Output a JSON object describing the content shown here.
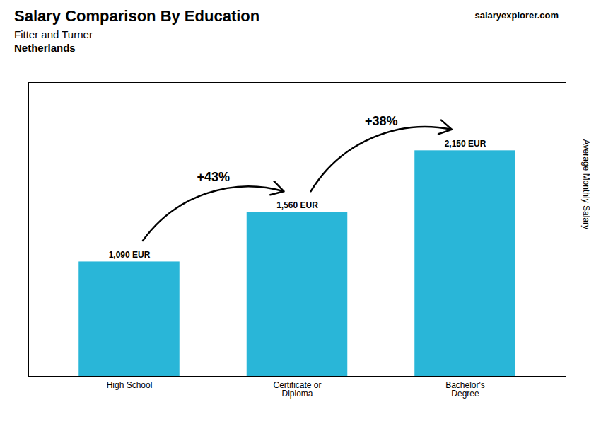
{
  "chart_data": {
    "type": "bar",
    "title": "Salary Comparison By Education",
    "subtitle": [
      "Fitter and Turner",
      "Netherlands"
    ],
    "caption": "salaryexplorer.com",
    "ylabel": "Average Monthly Salary",
    "categories": [
      "High School",
      "Certificate or\nDiploma",
      "Bachelor's\nDegree"
    ],
    "values": [
      1090,
      1560,
      2150
    ],
    "value_labels": [
      "1,090 EUR",
      "1,560 EUR",
      "2,150 EUR"
    ],
    "data_labels": true,
    "annotations": [
      "+43%",
      "+38%"
    ],
    "color": "#29b6d8",
    "ylim": [
      0,
      2800
    ],
    "grid": false,
    "tick_labels": "x"
  }
}
